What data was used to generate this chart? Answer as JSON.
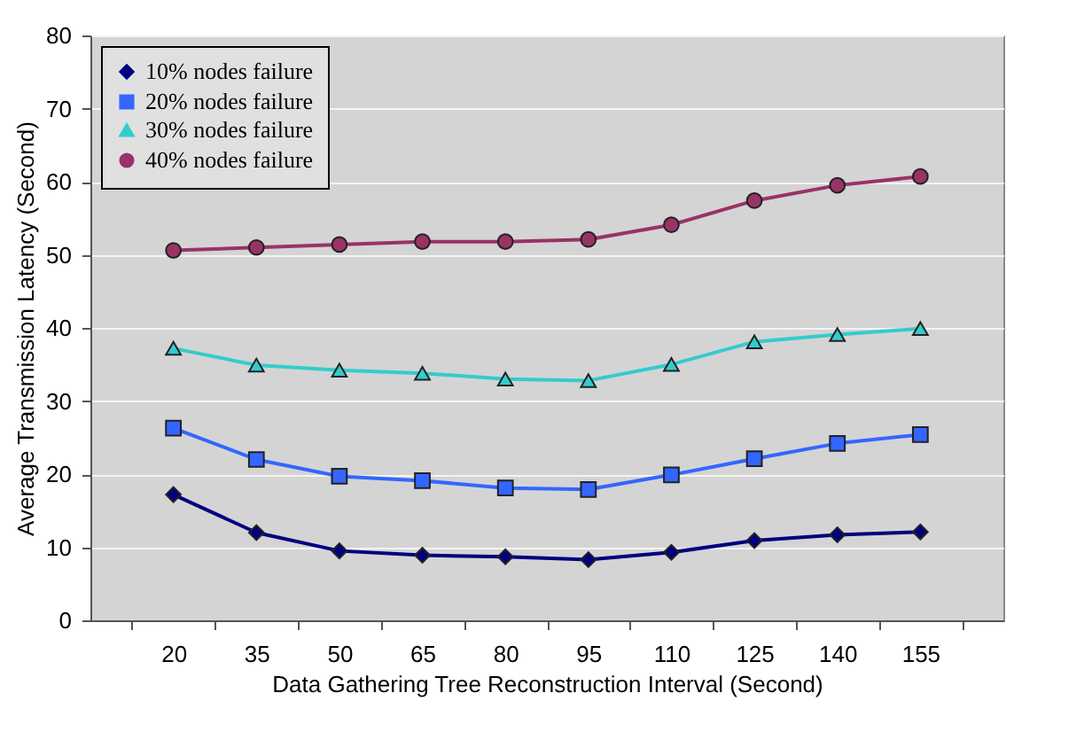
{
  "chart_data": {
    "type": "line",
    "xlabel": "Data Gathering Tree Reconstruction Interval (Second)",
    "ylabel": "Average Transmission Latency (Second)",
    "categories": [
      "20",
      "35",
      "50",
      "65",
      "80",
      "95",
      "110",
      "125",
      "140",
      "155"
    ],
    "series": [
      {
        "name": "10% nodes failure",
        "color": "#000080",
        "marker": "diamond",
        "values": [
          17.2,
          12.0,
          9.5,
          8.9,
          8.7,
          8.3,
          9.3,
          10.9,
          11.7,
          12.1
        ]
      },
      {
        "name": "20% nodes failure",
        "color": "#3366ff",
        "marker": "square",
        "values": [
          26.3,
          22.0,
          19.7,
          19.1,
          18.1,
          17.9,
          19.9,
          22.1,
          24.2,
          25.4
        ]
      },
      {
        "name": "30% nodes failure",
        "color": "#33cccc",
        "marker": "triangle",
        "values": [
          37.2,
          34.9,
          34.2,
          33.8,
          33.0,
          32.8,
          35.0,
          38.1,
          39.1,
          39.9
        ]
      },
      {
        "name": "40% nodes failure",
        "color": "#993366",
        "marker": "circle",
        "values": [
          50.6,
          51.0,
          51.4,
          51.8,
          51.8,
          52.1,
          54.1,
          57.4,
          59.5,
          60.7
        ]
      }
    ],
    "ylim": [
      0,
      80
    ],
    "yticks": [
      0,
      10,
      20,
      30,
      40,
      50,
      60,
      70,
      80
    ],
    "grid": "y",
    "legend": "top left"
  }
}
